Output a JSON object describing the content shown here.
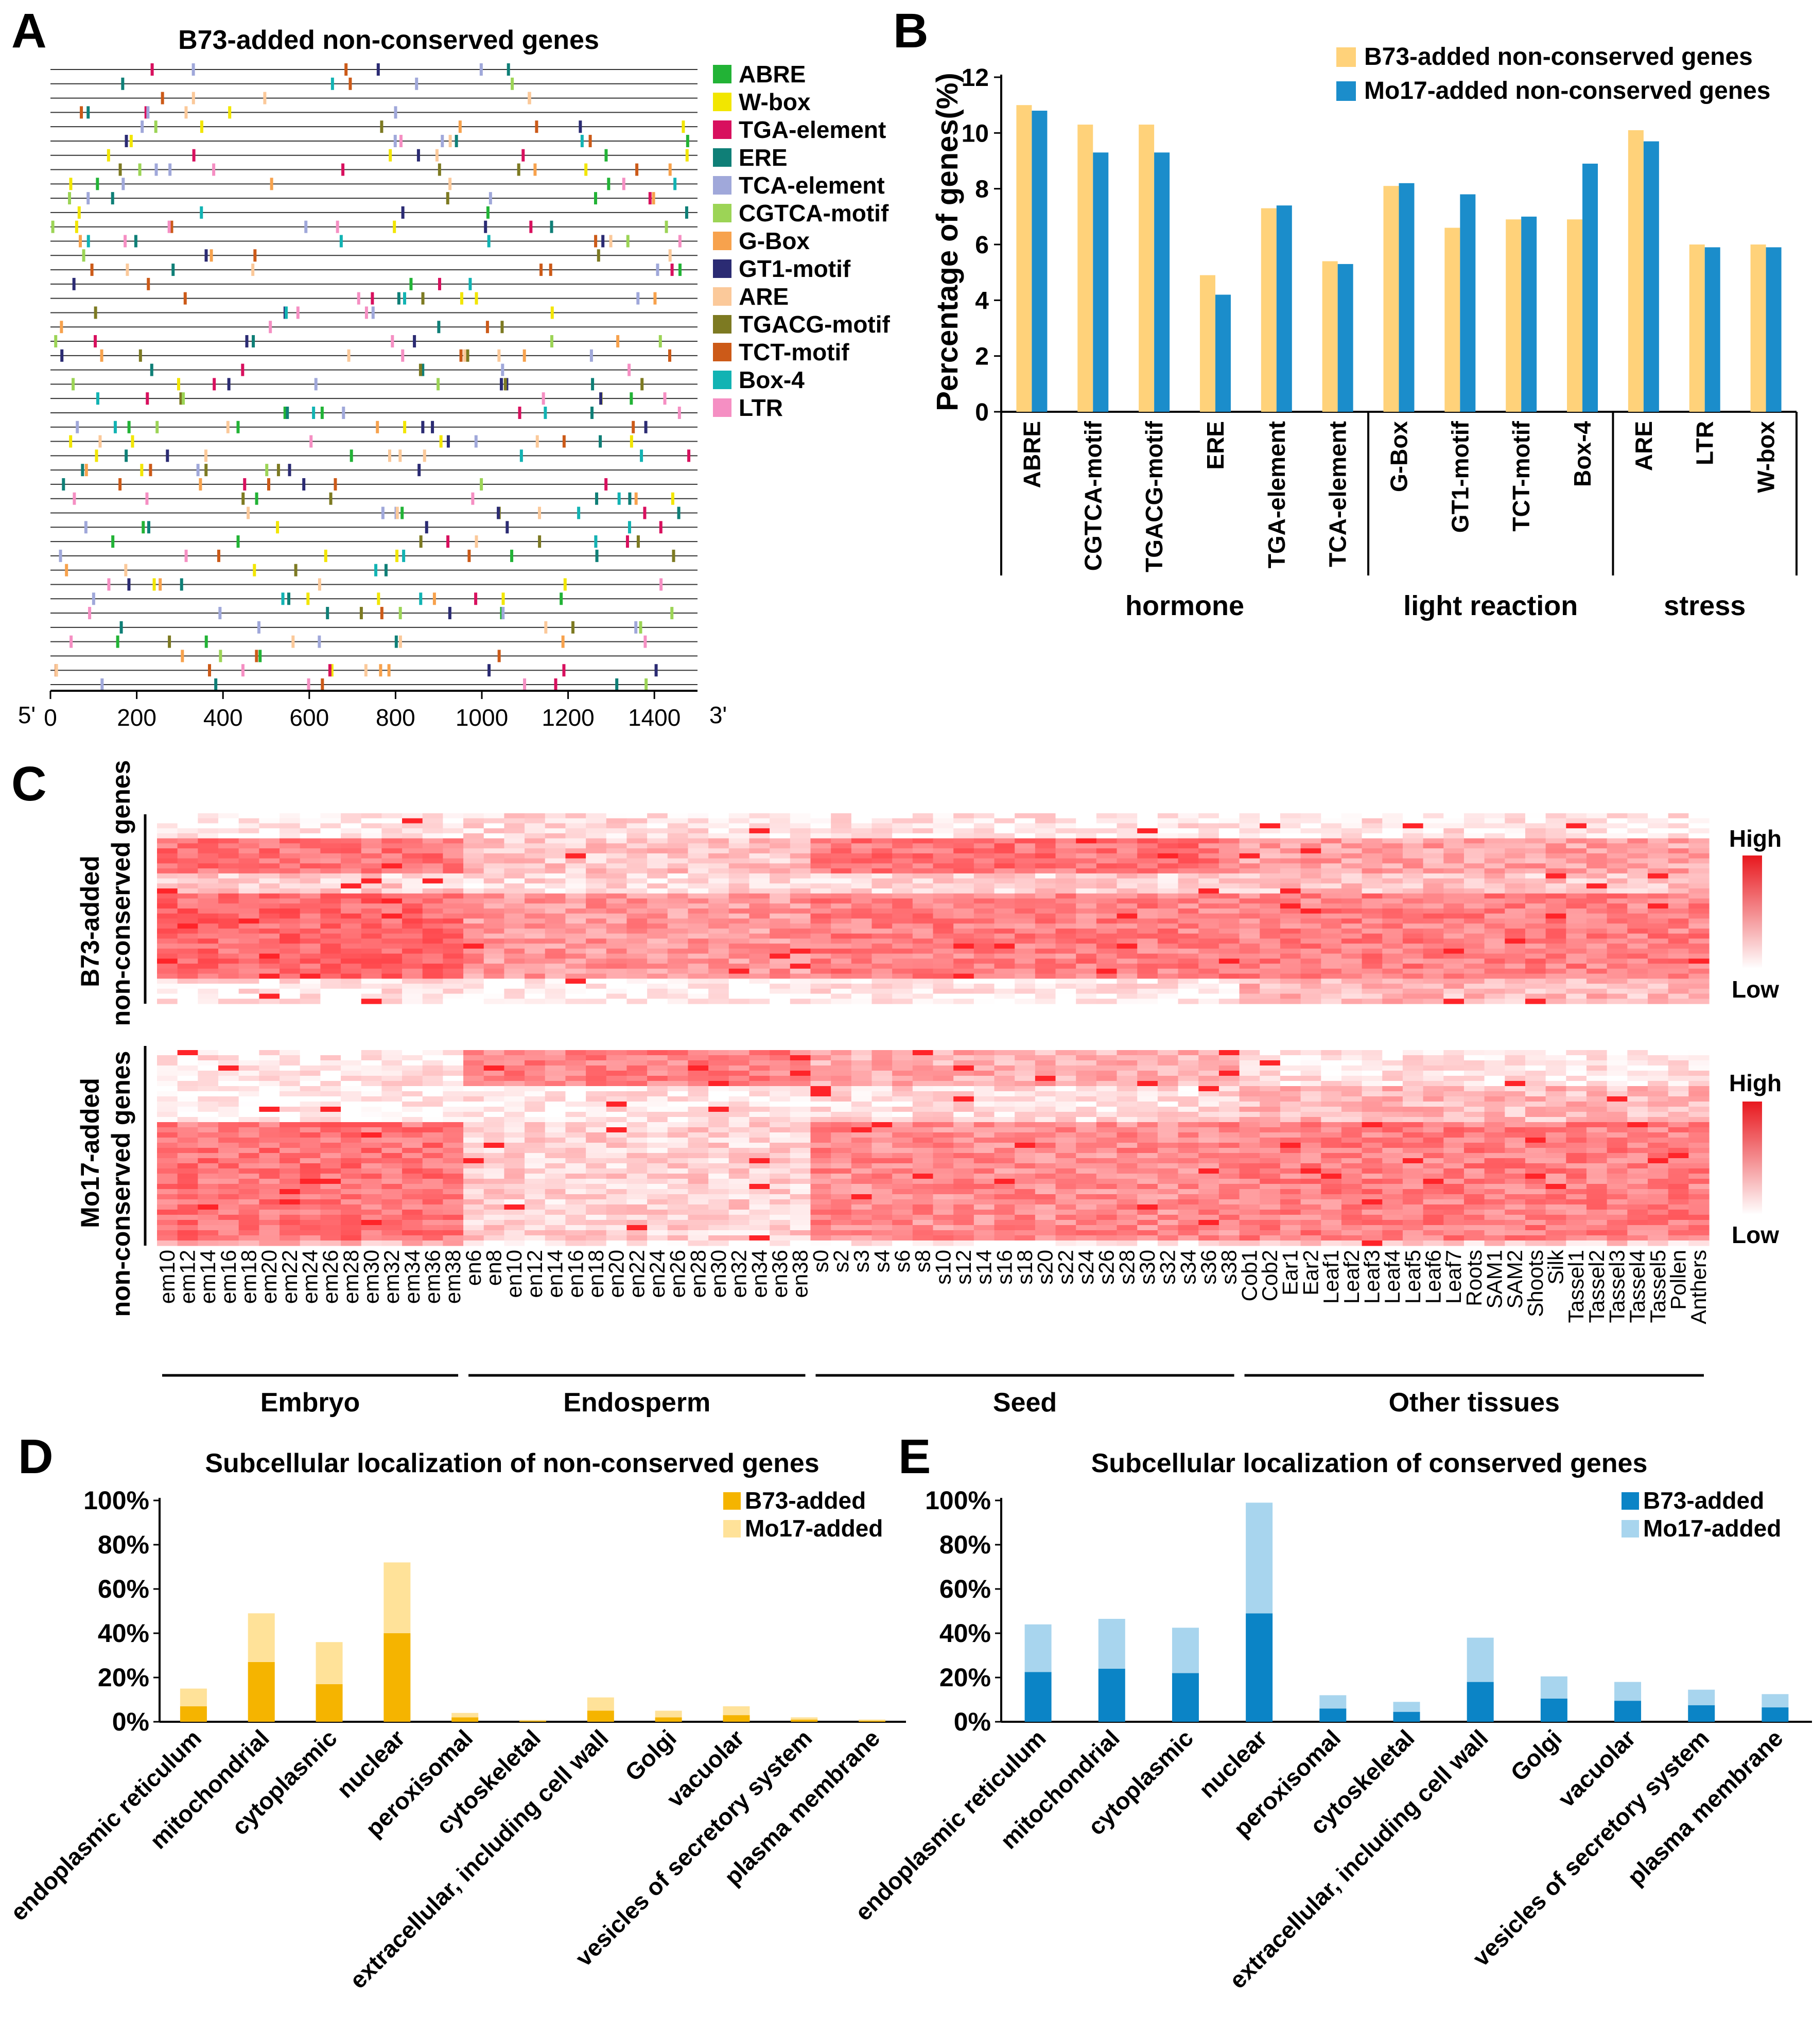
{
  "colors": {
    "yellow": "#FFD27A",
    "blue": "#1B8DCB",
    "dark_yellow": "#F5B400",
    "light_yellow": "#FFE299",
    "dark_blue": "#0B84C6",
    "light_blue": "#A8D5EE",
    "heat_high": "#E8181E",
    "heat_low": "#FFFFFF"
  },
  "chart_data": [
    {
      "panel": "A",
      "type": "scatter",
      "title": "B73-added non-conserved genes",
      "x_ticks": [
        "0",
        "200",
        "400",
        "600",
        "800",
        "1000",
        "1200",
        "1400"
      ],
      "xlim": [
        0,
        1500
      ],
      "five_prime_label": "5'",
      "three_prime_label": "3'",
      "track_count": 44,
      "legend": [
        {
          "name": "ABRE",
          "color": "#22B336",
          "icon": "square-swatch"
        },
        {
          "name": "W-box",
          "color": "#F2E600",
          "icon": "square-swatch"
        },
        {
          "name": "TGA-element",
          "color": "#D8105E",
          "icon": "square-swatch"
        },
        {
          "name": "ERE",
          "color": "#0F7F77",
          "icon": "square-swatch"
        },
        {
          "name": "TCA-element",
          "color": "#A0A8DA",
          "icon": "square-swatch"
        },
        {
          "name": "CGTCA-motif",
          "color": "#9CD456",
          "icon": "square-swatch"
        },
        {
          "name": "G-Box",
          "color": "#F7A24D",
          "icon": "square-swatch"
        },
        {
          "name": "GT1-motif",
          "color": "#2B2B73",
          "icon": "square-swatch"
        },
        {
          "name": "ARE",
          "color": "#FBC99A",
          "icon": "square-swatch"
        },
        {
          "name": "TGACG-motif",
          "color": "#7D7A22",
          "icon": "square-swatch"
        },
        {
          "name": "TCT-motif",
          "color": "#CC5A18",
          "icon": "square-swatch"
        },
        {
          "name": "Box-4",
          "color": "#12B3B3",
          "icon": "square-swatch"
        },
        {
          "name": "LTR",
          "color": "#F58FC3",
          "icon": "square-swatch"
        }
      ]
    },
    {
      "panel": "B",
      "type": "bar",
      "ylabel": "Percentage of genes(%)",
      "ylim": [
        0,
        12
      ],
      "y_ticks": [
        "0",
        "2",
        "4",
        "6",
        "8",
        "10",
        "12"
      ],
      "categories": [
        "ABRE",
        "CGTCA-motif",
        "TGACG-motif",
        "ERE",
        "TGA-element",
        "TCA-element",
        "G-Box",
        "GT1-motif",
        "TCT-motif",
        "Box-4",
        "ARE",
        "LTR",
        "W-box"
      ],
      "series": [
        {
          "name": "B73-added non-conserved genes",
          "color": "#FFD27A",
          "values": [
            11.0,
            10.3,
            10.3,
            4.9,
            7.3,
            5.4,
            8.1,
            6.6,
            6.9,
            6.9,
            10.1,
            6.0,
            6.0
          ]
        },
        {
          "name": "Mo17-added non-conserved genes",
          "color": "#1B8DCB",
          "values": [
            10.8,
            9.3,
            9.3,
            4.2,
            7.4,
            5.3,
            8.2,
            7.8,
            7.0,
            8.9,
            9.7,
            5.9,
            5.9
          ]
        }
      ],
      "groups": [
        {
          "label": "hormone",
          "start": 0,
          "end": 5
        },
        {
          "label": "light reaction",
          "start": 6,
          "end": 9
        },
        {
          "label": "stress",
          "start": 10,
          "end": 12
        }
      ]
    },
    {
      "panel": "C",
      "type": "heatmap",
      "columns": [
        "em10",
        "em12",
        "em14",
        "em16",
        "em18",
        "em20",
        "em22",
        "em24",
        "em26",
        "em28",
        "em30",
        "em32",
        "em34",
        "em36",
        "em38",
        "en6",
        "en8",
        "en10",
        "en12",
        "en14",
        "en16",
        "en18",
        "en20",
        "en22",
        "en24",
        "en26",
        "en28",
        "en30",
        "en32",
        "en34",
        "en36",
        "en38",
        "s0",
        "s2",
        "s3",
        "s4",
        "s6",
        "s8",
        "s10",
        "s12",
        "s14",
        "s16",
        "s18",
        "s20",
        "s22",
        "s24",
        "s26",
        "s28",
        "s30",
        "s32",
        "s34",
        "s36",
        "s38",
        "Cob1",
        "Cob2",
        "Ear1",
        "Ear2",
        "Leaf1",
        "Leaf2",
        "Leaf3",
        "Leaf4",
        "Leaf5",
        "Leaf6",
        "Leaf7",
        "Roots",
        "SAM1",
        "SAM2",
        "Shoots",
        "Silk",
        "Tassel1",
        "Tassel2",
        "Tassel3",
        "Tassel4",
        "Tassel5",
        "Pollen",
        "Anthers"
      ],
      "rows": [
        {
          "label": "B73-added non-conserved genes",
          "label_line1": "B73-added",
          "label_line2": "non-conserved genes"
        },
        {
          "label": "Mo17-added non-conserved genes",
          "label_line1": "Mo17-added",
          "label_line2": "non-conserved genes"
        }
      ],
      "scale_high": "High",
      "scale_low": "Low",
      "groups": [
        {
          "label": "Embryo",
          "start": 0,
          "end": 14
        },
        {
          "label": "Endosperm",
          "start": 15,
          "end": 31
        },
        {
          "label": "Seed",
          "start": 32,
          "end": 52
        },
        {
          "label": "Other tissues",
          "start": 53,
          "end": 75
        }
      ]
    },
    {
      "panel": "D",
      "type": "bar",
      "stacked": true,
      "title": "Subcellular localization of non-conserved genes",
      "ylim": [
        0,
        100
      ],
      "y_ticks": [
        "0%",
        "20%",
        "40%",
        "60%",
        "80%",
        "100%"
      ],
      "categories": [
        "endoplasmic reticulum",
        "mitochondrial",
        "cytoplasmic",
        "nuclear",
        "peroxisomal",
        "cytoskeletal",
        "extracellular, including cell wall",
        "Golgi",
        "vacuolar",
        "vesicles of secretory system",
        "plasma membrane"
      ],
      "series": [
        {
          "name": "B73-added",
          "color": "#F5B400",
          "values": [
            7,
            27,
            17,
            40,
            2,
            0.4,
            5,
            2,
            3,
            1,
            0.5
          ]
        },
        {
          "name": "Mo17-added",
          "color": "#FFE299",
          "values": [
            8,
            22,
            19,
            32,
            2,
            0.4,
            6,
            3,
            4,
            1,
            0.5
          ]
        }
      ]
    },
    {
      "panel": "E",
      "type": "bar",
      "stacked": true,
      "title": "Subcellular localization of conserved genes",
      "ylim": [
        0,
        100
      ],
      "y_ticks": [
        "0%",
        "20%",
        "40%",
        "60%",
        "80%",
        "100%"
      ],
      "categories": [
        "endoplasmic reticulum",
        "mitochondrial",
        "cytoplasmic",
        "nuclear",
        "peroxisomal",
        "cytoskeletal",
        "extracellular, including cell wall",
        "Golgi",
        "vacuolar",
        "vesicles of secretory system",
        "plasma membrane"
      ],
      "series": [
        {
          "name": "B73-added",
          "color": "#0B84C6",
          "values": [
            22.5,
            24,
            22,
            49,
            6,
            4.5,
            18,
            10.5,
            9.5,
            7.5,
            6.5
          ]
        },
        {
          "name": "Mo17-added",
          "color": "#A8D5EE",
          "values": [
            21.5,
            22.5,
            20.5,
            50,
            6,
            4.5,
            20,
            10,
            8.5,
            7,
            6
          ]
        }
      ]
    }
  ],
  "panel_labels": [
    "A",
    "B",
    "C",
    "D",
    "E"
  ]
}
